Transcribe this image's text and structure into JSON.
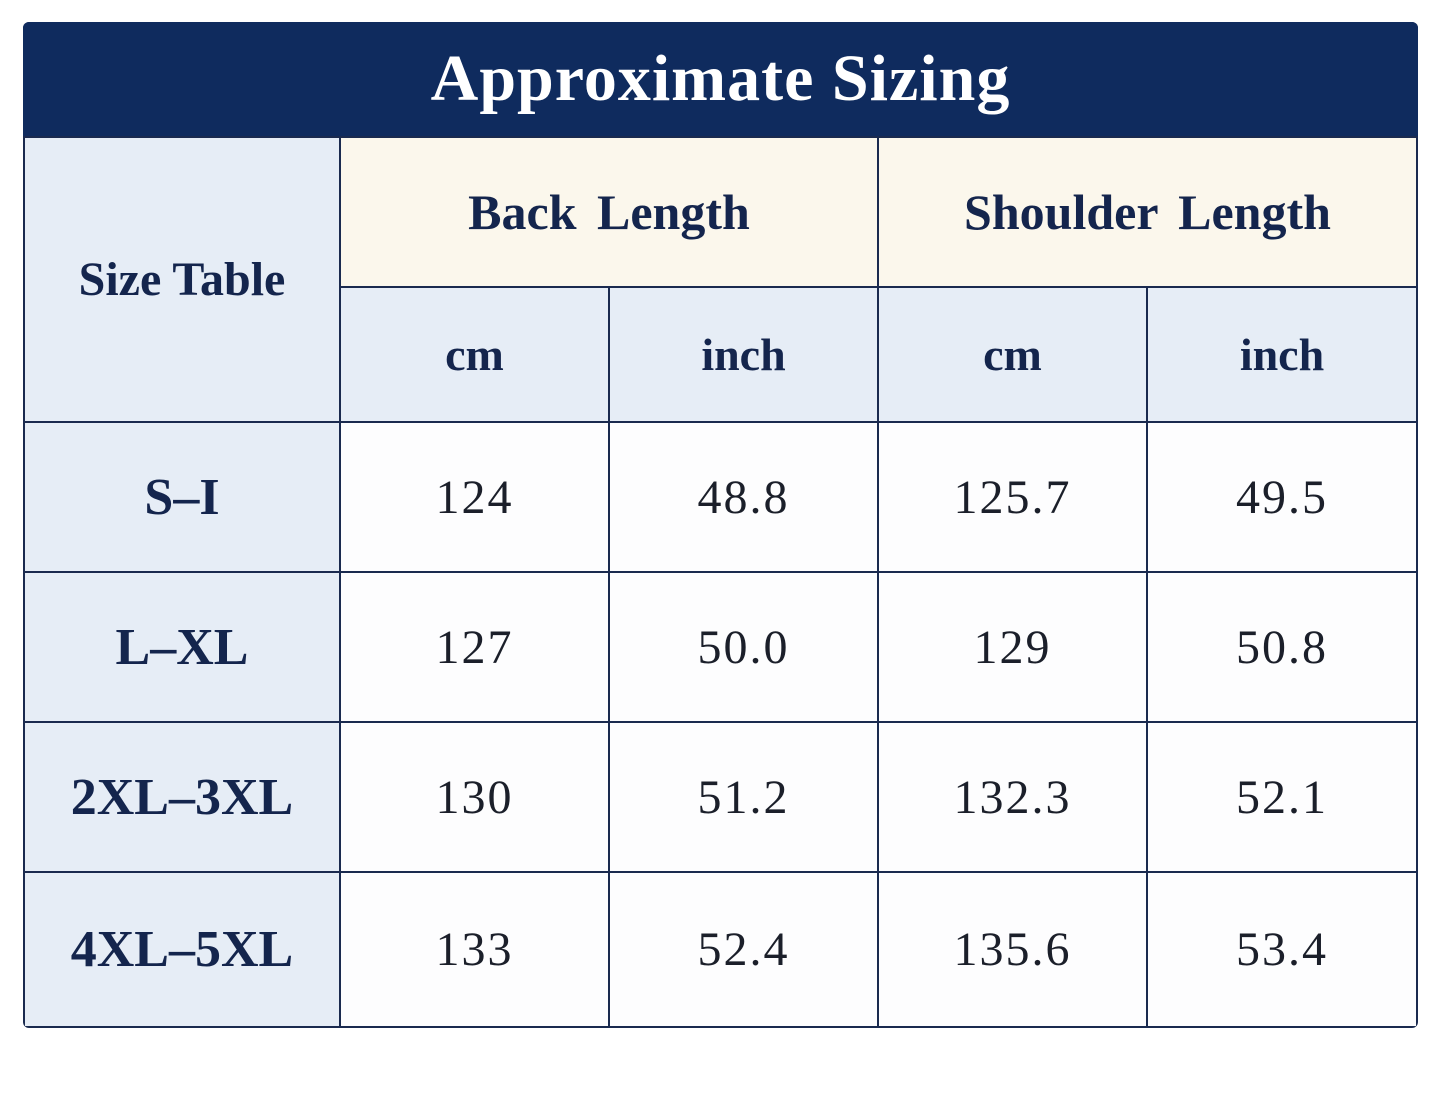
{
  "header": {
    "title": "Approximate Sizing"
  },
  "table": {
    "corner": "Size Table",
    "groups": [
      "Back Length",
      "Shoulder Length"
    ],
    "units": [
      "cm",
      "inch",
      "cm",
      "inch"
    ],
    "rows": [
      [
        "S–I",
        "124",
        "48.8",
        "125.7",
        "49.5"
      ],
      [
        "L–XL",
        "127",
        "50.0",
        "129",
        "50.8"
      ],
      [
        "2XL–3XL",
        "130",
        "51.2",
        "132.3",
        "52.1"
      ],
      [
        "4XL–5XL",
        "133",
        "52.4",
        "135.6",
        "53.4"
      ]
    ]
  }
}
